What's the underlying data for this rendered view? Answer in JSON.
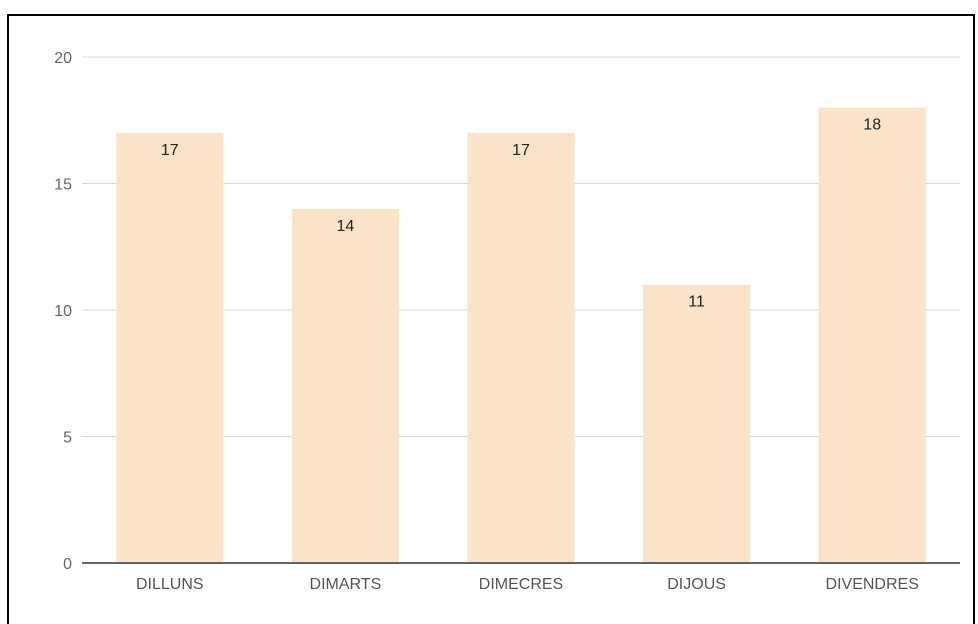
{
  "chart_data": {
    "type": "bar",
    "categories": [
      "DILLUNS",
      "DIMARTS",
      "DIMECRES",
      "DIJOUS",
      "DIVENDRES"
    ],
    "values": [
      17,
      14,
      17,
      11,
      18
    ],
    "y_ticks": [
      "0",
      "5",
      "10",
      "15",
      "20"
    ],
    "ylim": [
      0,
      20
    ],
    "grid": true,
    "legend": "none",
    "data_labels": true,
    "title": "",
    "xlabel": "",
    "ylabel": "",
    "colors": {
      "bar": "#fbe3c9",
      "grid": "#d9d9d9",
      "axis": "#333333"
    }
  }
}
